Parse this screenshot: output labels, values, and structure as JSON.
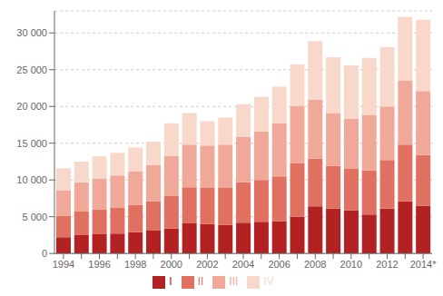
{
  "chart_data": {
    "type": "bar",
    "stacked": true,
    "grid": true,
    "legend": "bottom",
    "categories": [
      "1994",
      null,
      "1996",
      null,
      "1998",
      null,
      "2000",
      null,
      "2002",
      null,
      "2004",
      null,
      "2006",
      null,
      "2008",
      null,
      "2010",
      null,
      "2012",
      null,
      "2014*"
    ],
    "series": [
      {
        "name": "I",
        "color": "#b22222",
        "values": [
          2200,
          2500,
          2600,
          2700,
          2900,
          3100,
          3400,
          4100,
          4000,
          3900,
          4200,
          4300,
          4400,
          5000,
          6400,
          6100,
          5900,
          5300,
          6100,
          7100,
          6500
        ]
      },
      {
        "name": "II",
        "color": "#e07060",
        "values": [
          2900,
          3200,
          3400,
          3500,
          3700,
          4000,
          4400,
          4900,
          4900,
          5000,
          5500,
          5700,
          6100,
          7300,
          6500,
          5800,
          5600,
          6000,
          6600,
          7700,
          6900
        ]
      },
      {
        "name": "III",
        "color": "#f0a898",
        "values": [
          3500,
          4000,
          4200,
          4400,
          4600,
          4900,
          5500,
          5800,
          5800,
          5900,
          6200,
          6600,
          7200,
          7800,
          8000,
          7200,
          6800,
          7500,
          7300,
          8700,
          8700
        ]
      },
      {
        "name": "IV",
        "color": "#f9d8cc",
        "values": [
          3000,
          2800,
          3000,
          3100,
          3200,
          3200,
          4400,
          4300,
          3300,
          3700,
          4400,
          4700,
          5000,
          5600,
          8000,
          7600,
          7300,
          7800,
          8100,
          8700,
          9700
        ]
      }
    ],
    "ylim": [
      0,
      33000
    ],
    "yticks": [
      0,
      {
        "value": 5000,
        "label": "5 000"
      },
      {
        "value": 10000,
        "label": "10 000"
      },
      {
        "value": 15000,
        "label": "15 000"
      },
      {
        "value": 20000,
        "label": "20 000"
      },
      {
        "value": 25000,
        "label": "25 000"
      },
      {
        "value": 30000,
        "label": "30 000"
      }
    ]
  }
}
